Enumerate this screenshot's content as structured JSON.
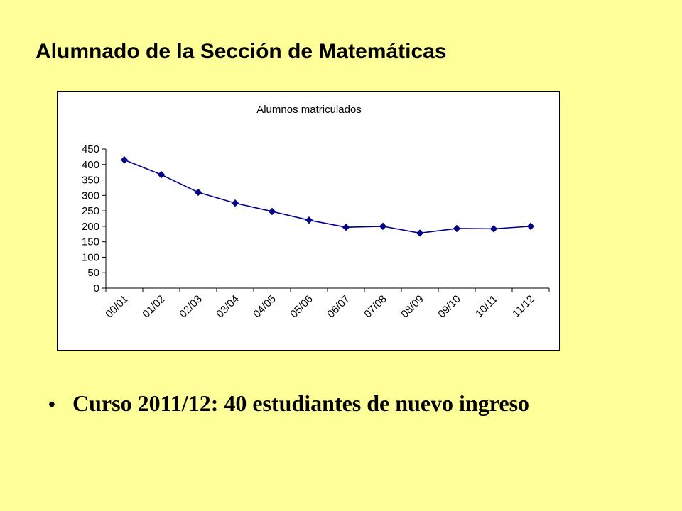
{
  "slide": {
    "title": "Alumnado de la Sección de Matemáticas",
    "bullet": "Curso 2011/12: 40 estudiantes de nuevo ingreso"
  },
  "colors": {
    "background": "#FFFF99",
    "series": "#00008B"
  },
  "chart_data": {
    "type": "line",
    "title": "Alumnos matriculados",
    "xlabel": "",
    "ylabel": "",
    "categories": [
      "00/01",
      "01/02",
      "02/03",
      "03/04",
      "04/05",
      "05/06",
      "06/07",
      "07/08",
      "08/09",
      "09/10",
      "10/11",
      "11/12"
    ],
    "values": [
      415,
      367,
      310,
      275,
      248,
      220,
      197,
      200,
      178,
      193,
      192,
      200
    ],
    "ylim": [
      0,
      450
    ],
    "yticks": [
      0,
      50,
      100,
      150,
      200,
      250,
      300,
      350,
      400,
      450
    ],
    "grid": false,
    "legend": "none",
    "marker": "diamond"
  }
}
